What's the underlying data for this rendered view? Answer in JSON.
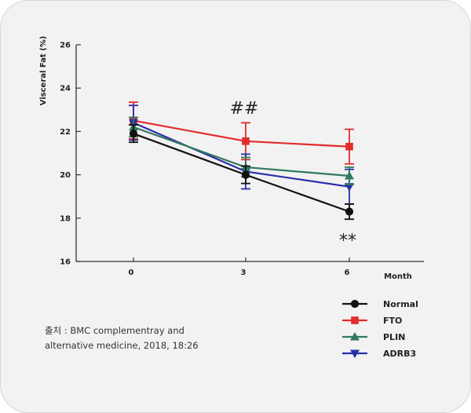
{
  "chart_data": {
    "type": "line",
    "ylabel": "Visceral Fat (%)",
    "xlabel": "Month",
    "x": [
      0,
      3,
      6
    ],
    "x_tick_labels": [
      "0",
      "3",
      "6"
    ],
    "ylim": [
      16,
      26
    ],
    "y_ticks": [
      16,
      18,
      20,
      22,
      24,
      26
    ],
    "grid": false,
    "legend_position": "bottom-right",
    "series": [
      {
        "name": "Normal",
        "color": "#111111",
        "marker": "circle",
        "values": [
          21.9,
          20.0,
          18.3
        ],
        "errors": [
          0.4,
          0.4,
          0.35
        ]
      },
      {
        "name": "FTO",
        "color": "#e32b2b",
        "marker": "square",
        "values": [
          22.5,
          21.55,
          21.3
        ],
        "errors": [
          0.85,
          0.85,
          0.8
        ]
      },
      {
        "name": "PLIN",
        "color": "#2f7a5c",
        "marker": "triangle-up",
        "values": [
          22.2,
          20.35,
          19.95
        ],
        "errors": [
          0.45,
          0.45,
          0.4
        ]
      },
      {
        "name": "ADRB3",
        "color": "#2a2ea8",
        "marker": "triangle-down",
        "values": [
          22.4,
          20.15,
          19.45
        ],
        "errors": [
          0.8,
          0.8,
          0.8
        ]
      }
    ],
    "annotations": [
      {
        "text": "##",
        "x": 3,
        "y": 23.1
      },
      {
        "text": "**",
        "x": 6,
        "y": 17.0
      }
    ]
  },
  "source_text": "출처 : BMC complementray and alternative medicine, 2018, 18:26"
}
